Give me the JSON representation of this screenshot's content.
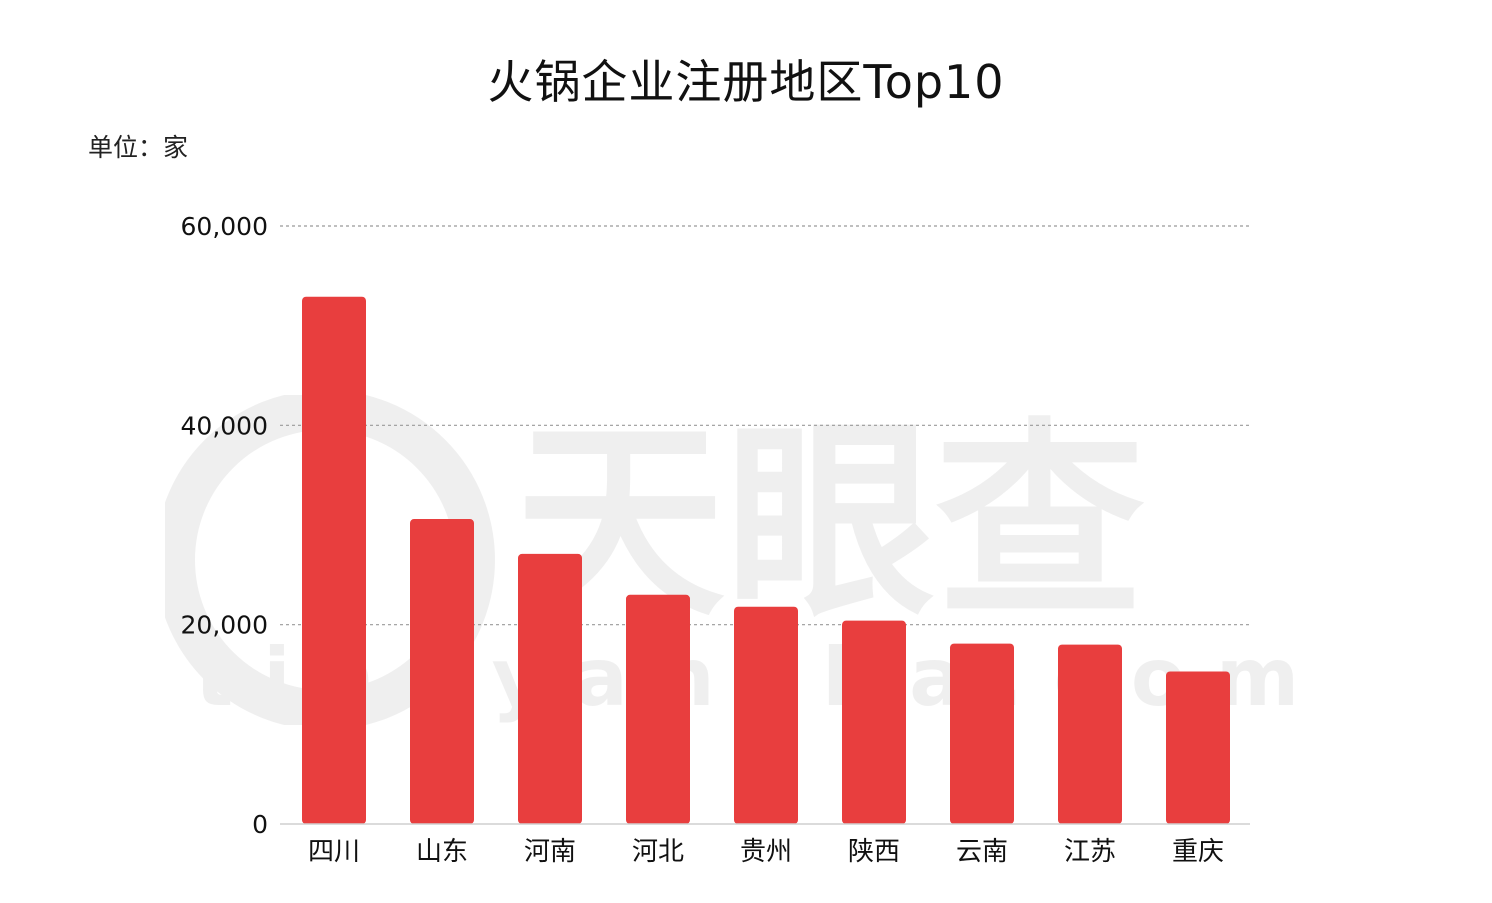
{
  "chart_data": {
    "type": "bar",
    "title": "火锅企业注册地区Top10",
    "unit_label": "单位：家",
    "categories": [
      "四川",
      "山东",
      "河南",
      "河北",
      "贵州",
      "陕西",
      "云南",
      "江苏",
      "重庆"
    ],
    "values": [
      52900,
      30600,
      27100,
      23000,
      21800,
      20400,
      18100,
      18000,
      15300
    ],
    "ylim": [
      0,
      60000
    ],
    "yticks": [
      0,
      20000,
      40000,
      60000
    ],
    "ytick_labels": [
      "0",
      "20,000",
      "40,000",
      "60,000"
    ],
    "grid": true,
    "bar_color": "#e83e3e"
  },
  "watermark": {
    "text": "天眼查",
    "sub": "tianyancha.com"
  }
}
